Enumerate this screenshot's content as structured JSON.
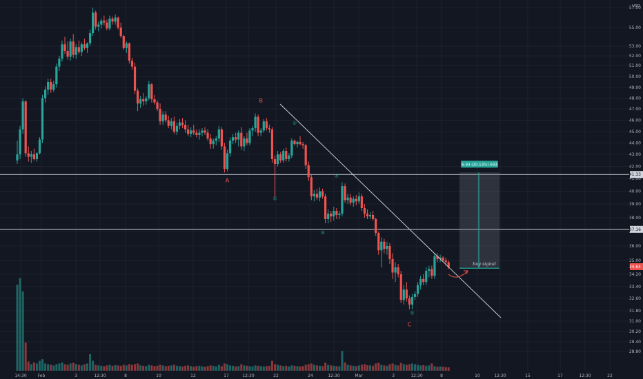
{
  "chart_data": {
    "type": "candlestick",
    "price_unit": "USD",
    "y_ticks": [
      "57.00",
      "55.00",
      "53.00",
      "52.00",
      "51.00",
      "50.00",
      "49.00",
      "48.00",
      "47.00",
      "46.00",
      "45.00",
      "44.00",
      "43.00",
      "42.00",
      "41.00",
      "40.00",
      "39.00",
      "38.00",
      "37.00",
      "36.00",
      "35.00",
      "34.20",
      "33.40",
      "32.60",
      "31.80",
      "31.00",
      "30.20",
      "29.40",
      "28.80"
    ],
    "x_ticks": [
      "14:30",
      "Feb",
      "3",
      "12:30",
      "8",
      "10",
      "12",
      "17",
      "12:30",
      "22",
      "24",
      "12:30",
      "Mar",
      "3",
      "12:30",
      "8",
      "10",
      "12:30",
      "15",
      "17",
      "12:30",
      "22"
    ],
    "candles": [
      [
        42.5,
        44.2,
        42.2,
        43.0
      ],
      [
        43.0,
        45.5,
        42.6,
        45.2
      ],
      [
        45.2,
        48.0,
        44.8,
        47.7
      ],
      [
        47.7,
        47.8,
        42.8,
        43.1
      ],
      [
        43.1,
        43.7,
        42.4,
        42.8
      ],
      [
        42.8,
        43.3,
        42.3,
        43.0
      ],
      [
        43.0,
        43.5,
        42.5,
        42.6
      ],
      [
        42.6,
        43.2,
        42.4,
        43.1
      ],
      [
        43.1,
        44.5,
        43.0,
        44.3
      ],
      [
        44.3,
        48.3,
        44.0,
        48.0
      ],
      [
        48.0,
        49.1,
        47.6,
        48.8
      ],
      [
        48.8,
        49.8,
        48.3,
        49.5
      ],
      [
        49.5,
        49.8,
        48.5,
        48.8
      ],
      [
        48.8,
        49.6,
        48.6,
        49.3
      ],
      [
        49.3,
        51.2,
        49.0,
        50.9
      ],
      [
        50.9,
        52.0,
        50.5,
        51.7
      ],
      [
        51.7,
        53.6,
        51.4,
        53.2
      ],
      [
        53.2,
        54.0,
        52.2,
        52.5
      ],
      [
        52.5,
        53.5,
        51.6,
        51.9
      ],
      [
        51.9,
        53.8,
        51.5,
        53.5
      ],
      [
        53.5,
        54.3,
        51.8,
        52.1
      ],
      [
        52.1,
        53.2,
        51.7,
        52.9
      ],
      [
        52.9,
        53.6,
        52.2,
        52.4
      ],
      [
        52.4,
        53.4,
        52.0,
        53.2
      ],
      [
        53.2,
        53.8,
        52.6,
        52.8
      ],
      [
        52.8,
        53.4,
        52.3,
        53.3
      ],
      [
        53.3,
        54.8,
        53.0,
        54.4
      ],
      [
        54.4,
        57.0,
        54.1,
        56.5
      ],
      [
        56.5,
        56.7,
        54.8,
        55.1
      ],
      [
        55.1,
        55.6,
        54.6,
        55.3
      ],
      [
        55.3,
        55.9,
        54.9,
        55.7
      ],
      [
        55.7,
        56.2,
        55.2,
        55.5
      ],
      [
        55.5,
        55.8,
        54.7,
        54.9
      ],
      [
        54.9,
        56.2,
        54.7,
        55.9
      ],
      [
        55.9,
        56.1,
        55.3,
        55.6
      ],
      [
        55.6,
        56.3,
        55.3,
        56.0
      ],
      [
        56.0,
        56.1,
        54.8,
        55.0
      ],
      [
        55.0,
        55.5,
        53.9,
        54.1
      ],
      [
        54.1,
        54.2,
        52.6,
        52.8
      ],
      [
        52.8,
        53.5,
        52.3,
        53.3
      ],
      [
        53.3,
        53.4,
        51.2,
        51.5
      ],
      [
        51.5,
        51.8,
        50.6,
        50.9
      ],
      [
        50.9,
        51.3,
        48.4,
        48.7
      ],
      [
        48.7,
        48.9,
        46.8,
        47.5
      ],
      [
        47.5,
        48.2,
        47.1,
        47.9
      ],
      [
        47.9,
        48.5,
        47.3,
        47.7
      ],
      [
        47.7,
        48.2,
        47.4,
        48.0
      ],
      [
        48.0,
        49.6,
        47.8,
        49.3
      ],
      [
        49.3,
        49.4,
        47.6,
        47.9
      ],
      [
        47.9,
        48.3,
        47.4,
        47.6
      ],
      [
        47.6,
        47.8,
        46.8,
        47.0
      ],
      [
        47.0,
        47.5,
        45.6,
        45.9
      ],
      [
        45.9,
        46.8,
        45.6,
        46.5
      ],
      [
        46.5,
        46.8,
        45.8,
        46.0
      ],
      [
        46.0,
        46.4,
        45.3,
        45.5
      ],
      [
        45.5,
        46.2,
        45.2,
        45.9
      ],
      [
        45.9,
        46.3,
        44.8,
        45.0
      ],
      [
        45.0,
        45.8,
        44.7,
        45.5
      ],
      [
        45.5,
        46.1,
        45.2,
        45.8
      ],
      [
        45.8,
        46.2,
        45.3,
        45.6
      ],
      [
        45.6,
        46.0,
        44.9,
        45.2
      ],
      [
        45.2,
        45.6,
        44.6,
        44.8
      ],
      [
        44.8,
        45.4,
        44.5,
        45.1
      ],
      [
        45.1,
        45.6,
        44.7,
        44.9
      ],
      [
        44.9,
        45.2,
        44.5,
        44.7
      ],
      [
        44.7,
        45.2,
        44.3,
        44.9
      ],
      [
        44.9,
        45.3,
        44.6,
        45.1
      ],
      [
        45.1,
        45.4,
        44.7,
        44.9
      ],
      [
        44.9,
        45.2,
        44.2,
        44.4
      ],
      [
        44.4,
        44.8,
        43.5,
        43.9
      ],
      [
        43.9,
        44.4,
        43.5,
        44.2
      ],
      [
        44.2,
        44.6,
        43.8,
        44.4
      ],
      [
        44.4,
        45.5,
        44.1,
        45.2
      ],
      [
        45.2,
        45.4,
        43.4,
        43.7
      ],
      [
        43.7,
        44.0,
        41.5,
        41.8
      ],
      [
        41.8,
        43.4,
        41.6,
        43.1
      ],
      [
        43.1,
        44.5,
        42.8,
        44.2
      ],
      [
        44.2,
        44.8,
        43.9,
        44.5
      ],
      [
        44.5,
        44.9,
        44.0,
        44.3
      ],
      [
        44.3,
        45.1,
        43.7,
        44.9
      ],
      [
        44.9,
        45.4,
        43.4,
        43.7
      ],
      [
        43.7,
        44.6,
        43.3,
        44.4
      ],
      [
        44.4,
        44.9,
        43.8,
        44.0
      ],
      [
        44.0,
        45.3,
        43.8,
        45.1
      ],
      [
        45.1,
        45.5,
        44.6,
        45.3
      ],
      [
        45.3,
        46.6,
        45.0,
        46.3
      ],
      [
        46.3,
        46.5,
        44.6,
        44.9
      ],
      [
        44.9,
        45.3,
        44.6,
        45.1
      ],
      [
        45.1,
        46.1,
        44.9,
        45.9
      ],
      [
        45.9,
        46.2,
        45.1,
        45.3
      ],
      [
        45.3,
        45.6,
        44.9,
        45.2
      ],
      [
        45.2,
        45.4,
        42.3,
        42.6
      ],
      [
        42.6,
        42.9,
        39.4,
        42.2
      ],
      [
        42.2,
        43.3,
        42.0,
        43.0
      ],
      [
        43.0,
        43.2,
        42.3,
        42.5
      ],
      [
        42.5,
        43.5,
        42.3,
        43.3
      ],
      [
        43.3,
        43.6,
        42.4,
        42.6
      ],
      [
        42.6,
        43.1,
        42.4,
        42.9
      ],
      [
        42.9,
        44.4,
        42.7,
        44.2
      ],
      [
        44.2,
        44.3,
        43.8,
        43.9
      ],
      [
        43.9,
        44.2,
        43.6,
        44.1
      ],
      [
        44.1,
        44.6,
        43.8,
        43.9
      ],
      [
        43.9,
        44.1,
        43.5,
        43.8
      ],
      [
        43.8,
        43.9,
        41.8,
        42.1
      ],
      [
        42.1,
        42.4,
        40.8,
        41.1
      ],
      [
        41.1,
        41.4,
        39.3,
        39.6
      ],
      [
        39.6,
        40.1,
        39.2,
        39.8
      ],
      [
        39.8,
        40.2,
        39.3,
        39.5
      ],
      [
        39.5,
        40.3,
        39.2,
        40.0
      ],
      [
        40.0,
        40.2,
        39.4,
        39.6
      ],
      [
        39.6,
        39.8,
        37.6,
        37.9
      ],
      [
        37.9,
        38.6,
        37.6,
        38.3
      ],
      [
        38.3,
        38.5,
        37.7,
        38.1
      ],
      [
        38.1,
        38.8,
        37.8,
        38.5
      ],
      [
        38.5,
        38.7,
        37.9,
        38.2
      ],
      [
        38.2,
        38.5,
        37.9,
        38.3
      ],
      [
        38.3,
        40.7,
        38.1,
        40.4
      ],
      [
        40.4,
        40.6,
        39.1,
        39.3
      ],
      [
        39.3,
        39.8,
        39.0,
        39.5
      ],
      [
        39.5,
        39.8,
        38.9,
        39.1
      ],
      [
        39.1,
        39.6,
        38.8,
        39.4
      ],
      [
        39.4,
        39.7,
        38.9,
        39.2
      ],
      [
        39.2,
        39.9,
        39.0,
        39.6
      ],
      [
        39.6,
        39.8,
        38.5,
        38.7
      ],
      [
        38.7,
        39.0,
        38.0,
        38.3
      ],
      [
        38.3,
        38.6,
        37.9,
        38.1
      ],
      [
        38.1,
        38.4,
        37.9,
        38.2
      ],
      [
        38.2,
        38.5,
        37.8,
        37.9
      ],
      [
        37.9,
        38.0,
        36.7,
        36.9
      ],
      [
        36.9,
        37.0,
        35.4,
        35.7
      ],
      [
        35.7,
        36.6,
        34.6,
        36.3
      ],
      [
        36.3,
        36.5,
        35.5,
        35.8
      ],
      [
        35.8,
        36.3,
        35.4,
        36.0
      ],
      [
        36.0,
        36.2,
        34.8,
        35.1
      ],
      [
        35.1,
        35.5,
        33.9,
        34.3
      ],
      [
        34.3,
        34.9,
        33.7,
        34.6
      ],
      [
        34.6,
        34.8,
        34.0,
        34.2
      ],
      [
        34.2,
        34.4,
        32.3,
        32.5
      ],
      [
        32.5,
        33.5,
        32.2,
        33.2
      ],
      [
        33.2,
        33.7,
        32.4,
        32.6
      ],
      [
        32.6,
        32.8,
        31.9,
        32.2
      ],
      [
        32.2,
        32.9,
        31.9,
        32.7
      ],
      [
        32.7,
        33.1,
        32.5,
        32.9
      ],
      [
        32.9,
        33.7,
        32.7,
        33.5
      ],
      [
        33.5,
        34.1,
        33.2,
        33.9
      ],
      [
        33.9,
        34.2,
        33.5,
        33.7
      ],
      [
        33.7,
        34.6,
        33.5,
        34.4
      ],
      [
        34.4,
        34.7,
        34.0,
        34.5
      ],
      [
        34.5,
        34.7,
        33.9,
        34.1
      ],
      [
        34.1,
        35.5,
        33.9,
        35.3
      ],
      [
        35.3,
        35.5,
        34.9,
        35.1
      ],
      [
        35.1,
        35.4,
        34.9,
        35.2
      ],
      [
        35.2,
        35.3,
        34.9,
        35.0
      ],
      [
        35.0,
        35.2,
        34.7,
        34.9
      ],
      [
        34.9,
        35.0,
        34.5,
        34.6
      ]
    ],
    "volumes": [
      2.6,
      2.8,
      2.4,
      0.85,
      0.28,
      0.2,
      0.25,
      0.22,
      0.3,
      0.35,
      0.22,
      0.2,
      0.18,
      0.16,
      0.2,
      0.22,
      0.25,
      0.2,
      0.18,
      0.22,
      0.24,
      0.2,
      0.18,
      0.16,
      0.2,
      0.22,
      0.5,
      0.3,
      0.18,
      0.16,
      0.15,
      0.14,
      0.16,
      0.18,
      0.15,
      0.17,
      0.16,
      0.15,
      0.18,
      0.16,
      0.2,
      0.18,
      0.2,
      0.22,
      0.16,
      0.15,
      0.14,
      0.18,
      0.16,
      0.14,
      0.15,
      0.18,
      0.16,
      0.14,
      0.15,
      0.16,
      0.18,
      0.15,
      0.14,
      0.13,
      0.15,
      0.16,
      0.14,
      0.12,
      0.14,
      0.15,
      0.13,
      0.12,
      0.14,
      0.16,
      0.15,
      0.13,
      0.18,
      0.14,
      0.22,
      0.2,
      0.16,
      0.15,
      0.13,
      0.14,
      0.2,
      0.16,
      0.15,
      0.14,
      0.13,
      0.16,
      0.15,
      0.14,
      0.13,
      0.14,
      0.15,
      0.3,
      0.2,
      0.18,
      0.16,
      0.14,
      0.15,
      0.13,
      0.16,
      0.15,
      0.14,
      0.13,
      0.14,
      0.18,
      0.2,
      0.22,
      0.18,
      0.16,
      0.15,
      0.14,
      0.24,
      0.18,
      0.16,
      0.15,
      0.14,
      0.13,
      0.6,
      0.25,
      0.18,
      0.16,
      0.15,
      0.14,
      0.16,
      0.18,
      0.2,
      0.17,
      0.16,
      0.15,
      0.22,
      0.24,
      0.18,
      0.16,
      0.15,
      0.2,
      0.22,
      0.18,
      0.16,
      0.24,
      0.2,
      0.18,
      0.2,
      0.22,
      0.2,
      0.18,
      0.16,
      0.17,
      0.15,
      0.16,
      0.22,
      0.14,
      0.12,
      0.13,
      0.12,
      0.11,
      0.1
    ],
    "horizontal_lines": [
      {
        "price": 41.33,
        "label": "41.33"
      },
      {
        "price": 37.16,
        "label": "37.16"
      }
    ],
    "last_price": {
      "price": 34.64,
      "label": "34.64"
    },
    "trendline": [
      [
        0.25,
        47.2
      ],
      [
        0.53,
        31.5
      ]
    ],
    "wave_labels": [
      {
        "text": "B",
        "i": 87,
        "price": 47.6,
        "color": "red"
      },
      {
        "text": "A",
        "i": 75,
        "price": 40.7,
        "color": "red"
      },
      {
        "text": "C",
        "i": 140,
        "price": 30.6,
        "color": "red"
      },
      {
        "text": "①",
        "i": 92,
        "price": 39.3,
        "color": "teal"
      },
      {
        "text": "②",
        "i": 99,
        "price": 45.6,
        "color": "teal"
      },
      {
        "text": "③",
        "i": 109,
        "price": 36.8,
        "color": "teal"
      },
      {
        "text": "④",
        "i": 114,
        "price": 41.1,
        "color": "teal"
      },
      {
        "text": "⑤",
        "i": 141,
        "price": 31.5,
        "color": "teal"
      }
    ],
    "long_position": {
      "label": "6.93 (20.13%) 693",
      "entry": 34.55,
      "target": 41.5
    },
    "annotation": "buy signal"
  }
}
